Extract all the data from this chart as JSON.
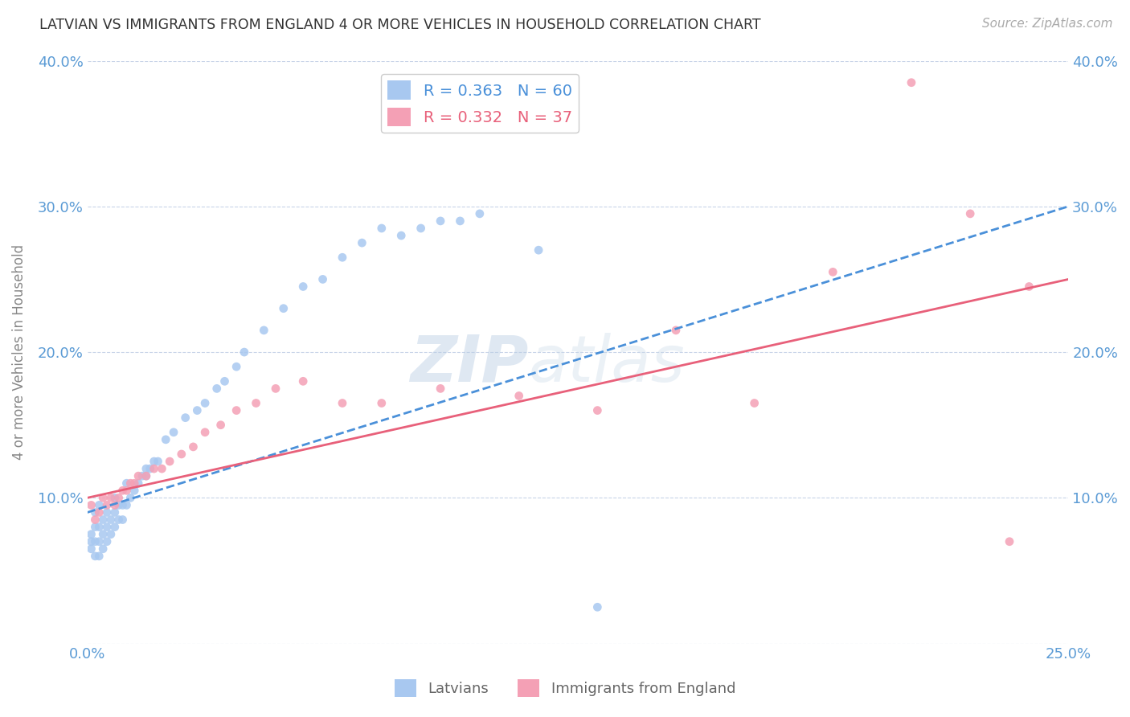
{
  "title": "LATVIAN VS IMMIGRANTS FROM ENGLAND 4 OR MORE VEHICLES IN HOUSEHOLD CORRELATION CHART",
  "source": "Source: ZipAtlas.com",
  "ylabel": "4 or more Vehicles in Household",
  "xlim": [
    0.0,
    0.25
  ],
  "ylim": [
    0.0,
    0.4
  ],
  "color_latvian": "#a8c8f0",
  "color_immigrant": "#f4a0b5",
  "color_line_latvian": "#4a90d9",
  "color_line_immigrant": "#e8607a",
  "color_axis_labels": "#5b9bd5",
  "legend_entry1": "R = 0.363   N = 60",
  "legend_entry2": "R = 0.332   N = 37",
  "legend_latvians": "Latvians",
  "legend_immigrants": "Immigrants from England",
  "lat_intercept": 0.09,
  "lat_slope": 0.84,
  "imm_intercept": 0.1,
  "imm_slope": 0.6,
  "latvian_x": [
    0.001,
    0.001,
    0.001,
    0.002,
    0.002,
    0.002,
    0.002,
    0.003,
    0.003,
    0.003,
    0.003,
    0.004,
    0.004,
    0.004,
    0.005,
    0.005,
    0.005,
    0.006,
    0.006,
    0.007,
    0.007,
    0.007,
    0.008,
    0.008,
    0.009,
    0.009,
    0.01,
    0.01,
    0.011,
    0.012,
    0.013,
    0.014,
    0.015,
    0.015,
    0.016,
    0.017,
    0.018,
    0.02,
    0.022,
    0.025,
    0.028,
    0.03,
    0.033,
    0.035,
    0.038,
    0.04,
    0.045,
    0.05,
    0.055,
    0.06,
    0.065,
    0.07,
    0.075,
    0.08,
    0.085,
    0.09,
    0.095,
    0.1,
    0.115,
    0.13
  ],
  "latvian_y": [
    0.065,
    0.07,
    0.075,
    0.06,
    0.07,
    0.08,
    0.09,
    0.06,
    0.07,
    0.08,
    0.095,
    0.065,
    0.075,
    0.085,
    0.07,
    0.08,
    0.09,
    0.075,
    0.085,
    0.08,
    0.09,
    0.1,
    0.085,
    0.095,
    0.085,
    0.095,
    0.095,
    0.11,
    0.1,
    0.105,
    0.11,
    0.115,
    0.115,
    0.12,
    0.12,
    0.125,
    0.125,
    0.14,
    0.145,
    0.155,
    0.16,
    0.165,
    0.175,
    0.18,
    0.19,
    0.2,
    0.215,
    0.23,
    0.245,
    0.25,
    0.265,
    0.275,
    0.285,
    0.28,
    0.285,
    0.29,
    0.29,
    0.295,
    0.27,
    0.025
  ],
  "immigrant_x": [
    0.001,
    0.002,
    0.003,
    0.004,
    0.005,
    0.006,
    0.007,
    0.008,
    0.009,
    0.01,
    0.011,
    0.012,
    0.013,
    0.015,
    0.017,
    0.019,
    0.021,
    0.024,
    0.027,
    0.03,
    0.034,
    0.038,
    0.043,
    0.048,
    0.055,
    0.065,
    0.075,
    0.09,
    0.11,
    0.13,
    0.15,
    0.17,
    0.19,
    0.21,
    0.225,
    0.235,
    0.24
  ],
  "immigrant_y": [
    0.095,
    0.085,
    0.09,
    0.1,
    0.095,
    0.1,
    0.095,
    0.1,
    0.105,
    0.105,
    0.11,
    0.11,
    0.115,
    0.115,
    0.12,
    0.12,
    0.125,
    0.13,
    0.135,
    0.145,
    0.15,
    0.16,
    0.165,
    0.175,
    0.18,
    0.165,
    0.165,
    0.175,
    0.17,
    0.16,
    0.215,
    0.165,
    0.255,
    0.385,
    0.295,
    0.07,
    0.245
  ]
}
